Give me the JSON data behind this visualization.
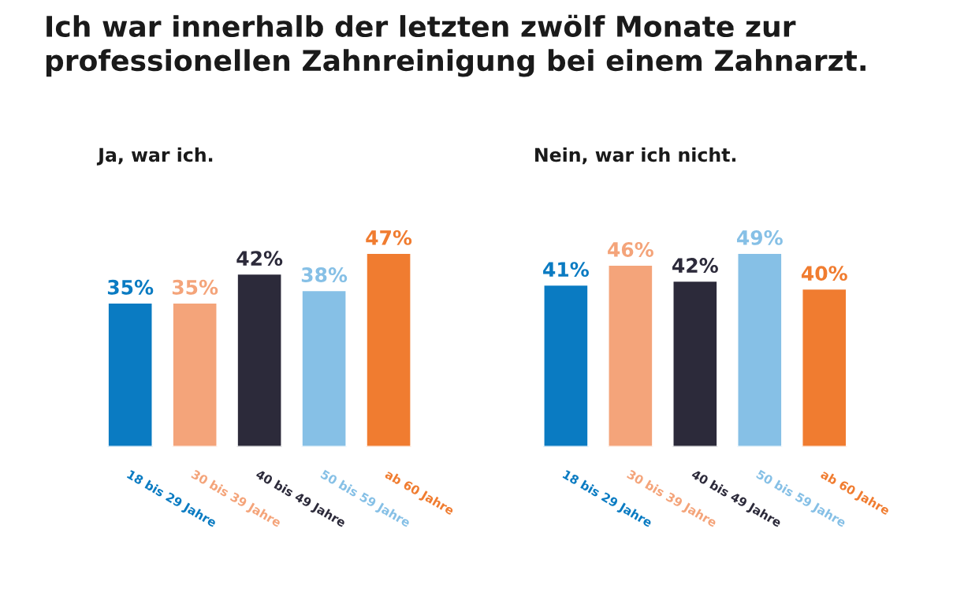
{
  "chart_data": [
    {
      "type": "bar",
      "title": "Ich war innerhalb der letzten zwölf Monate zur\nprofessionellen Zahnreinigung bei einem Zahnarzt.",
      "subtitle": "Ja, war ich.",
      "categories": [
        "18 bis 29 Jahre",
        "30 bis 39 Jahre",
        "40 bis 49 Jahre",
        "50 bis 59 Jahre",
        "ab 60 Jahre"
      ],
      "values": [
        35,
        35,
        42,
        38,
        47
      ],
      "value_labels": [
        "35%",
        "35%",
        "42%",
        "38%",
        "47%"
      ],
      "colors": [
        "#0a7bc2",
        "#f4a47a",
        "#2c2a3a",
        "#86c0e6",
        "#f07c30"
      ]
    },
    {
      "type": "bar",
      "subtitle": "Nein, war ich nicht.",
      "categories": [
        "18 bis 29 Jahre",
        "30 bis 39 Jahre",
        "40 bis 49 Jahre",
        "50 bis 59 Jahre",
        "ab 60 Jahre"
      ],
      "values": [
        41,
        46,
        42,
        49,
        40
      ],
      "value_labels": [
        "41%",
        "46%",
        "42%",
        "49%",
        "40%"
      ],
      "colors": [
        "#0a7bc2",
        "#f4a47a",
        "#2c2a3a",
        "#86c0e6",
        "#f07c30"
      ]
    }
  ]
}
